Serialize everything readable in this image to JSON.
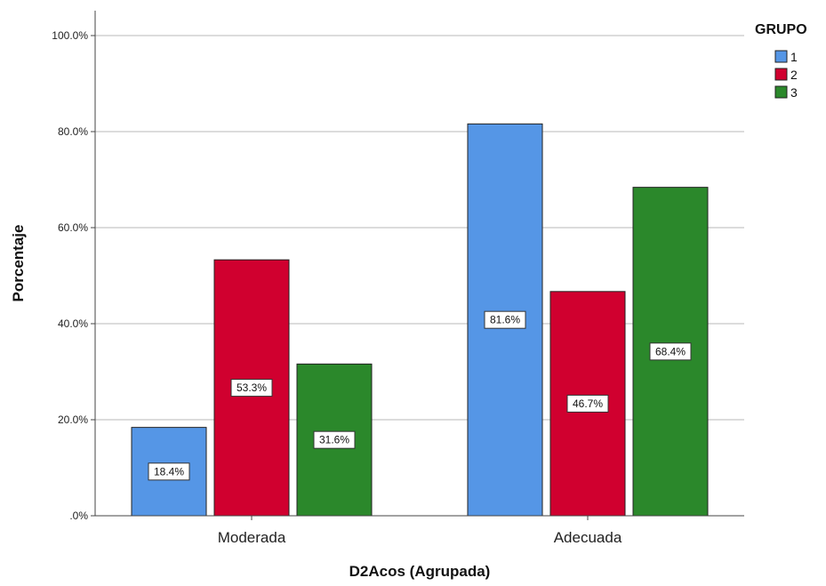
{
  "chart_data": {
    "type": "bar",
    "categories": [
      "Moderada",
      "Adecuada"
    ],
    "series": [
      {
        "name": "1",
        "color": "#5596E6",
        "values": [
          18.4,
          81.6
        ],
        "labels": [
          "18.4%",
          "81.6%"
        ]
      },
      {
        "name": "2",
        "color": "#D0002F",
        "values": [
          53.3,
          46.7
        ],
        "labels": [
          "53.3%",
          "46.7%"
        ]
      },
      {
        "name": "3",
        "color": "#2B882B",
        "values": [
          31.6,
          68.4
        ],
        "labels": [
          "31.6%",
          "68.4%"
        ]
      }
    ],
    "xlabel": "D2Acos (Agrupada)",
    "ylabel": "Porcentaje",
    "ylim": [
      0,
      100
    ],
    "yticks": [
      0,
      20,
      40,
      60,
      80,
      100
    ],
    "ytick_labels": [
      ".0%",
      "20.0%",
      "40.0%",
      "60.0%",
      "80.0%",
      "100.0%"
    ],
    "legend_title": "GRUPO",
    "legend_position": "top-right",
    "grid": true
  }
}
